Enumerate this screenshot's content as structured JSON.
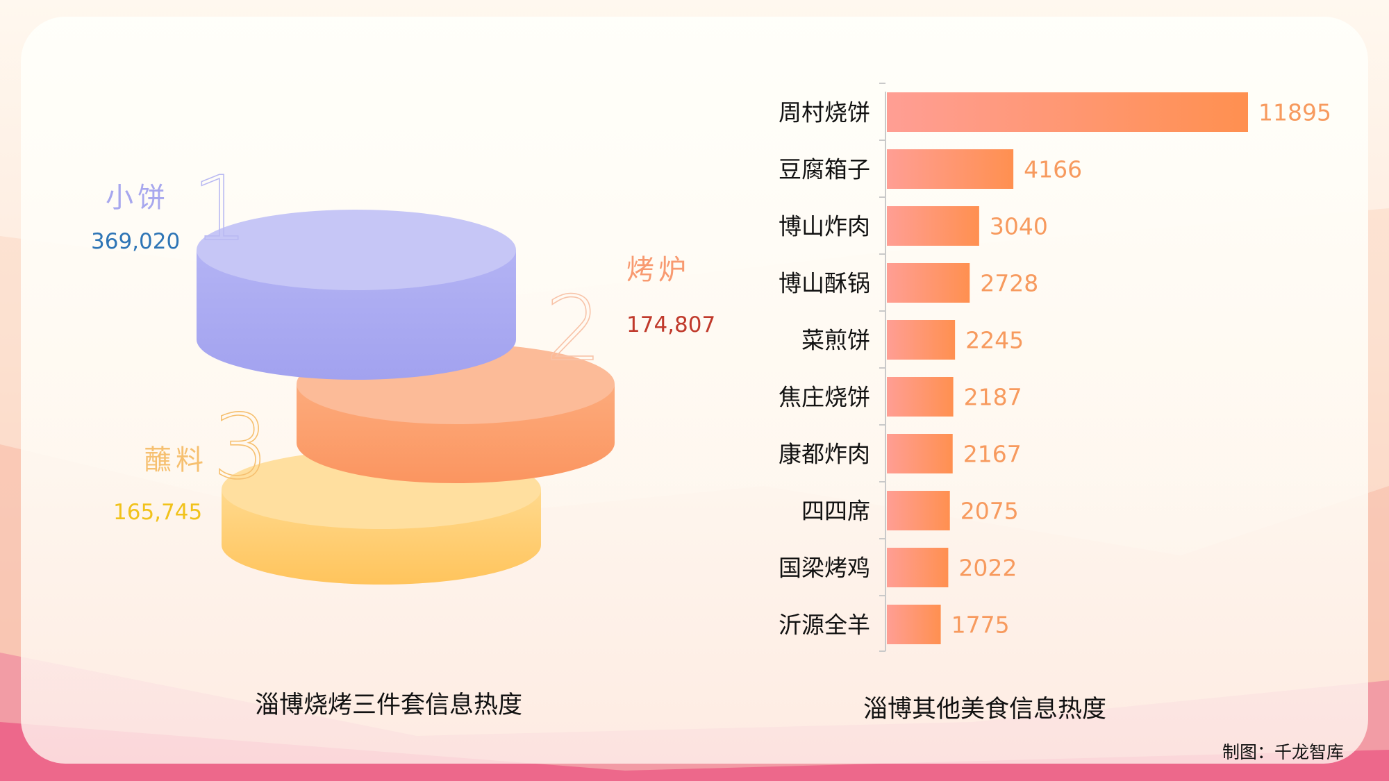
{
  "colors": {
    "biscuit": "#a9a9f2",
    "oven": "#fb9d68",
    "dip": "#ffc966",
    "biscuit_label": "#a7a7ee",
    "biscuit_value": "#2e75b6",
    "oven_label": "#f89a70",
    "oven_value": "#c0392b",
    "dip_label": "#f6c070",
    "dip_value": "#f1c21b",
    "bar_start": "#ff9e94",
    "bar_end": "#ff9050",
    "bar_value": "#f79a5e"
  },
  "chart_data": [
    {
      "type": "bar",
      "title": "淄博烧烤三件套信息热度",
      "categories": [
        "小饼",
        "烤炉",
        "蘸料"
      ],
      "ranks": [
        "1",
        "2",
        "3"
      ],
      "values": [
        369020,
        174807,
        165745
      ],
      "value_labels": [
        "369,020",
        "174,807",
        "165,745"
      ]
    },
    {
      "type": "bar",
      "orientation": "horizontal",
      "title": "淄博其他美食信息热度",
      "categories": [
        "周村烧饼",
        "豆腐箱子",
        "博山炸肉",
        "博山酥锅",
        "菜煎饼",
        "焦庄烧饼",
        "康都炸肉",
        "四四席",
        "国梁烤鸡",
        "沂源全羊"
      ],
      "values": [
        11895,
        4166,
        3040,
        2728,
        2245,
        2187,
        2167,
        2075,
        2022,
        1775
      ],
      "value_labels": [
        "11895",
        "4166",
        "3040",
        "2728",
        "2245",
        "2187",
        "2167",
        "2075",
        "2022",
        "1775"
      ],
      "xlim": [
        0,
        11895
      ]
    }
  ],
  "credit": "制图：千龙智库"
}
